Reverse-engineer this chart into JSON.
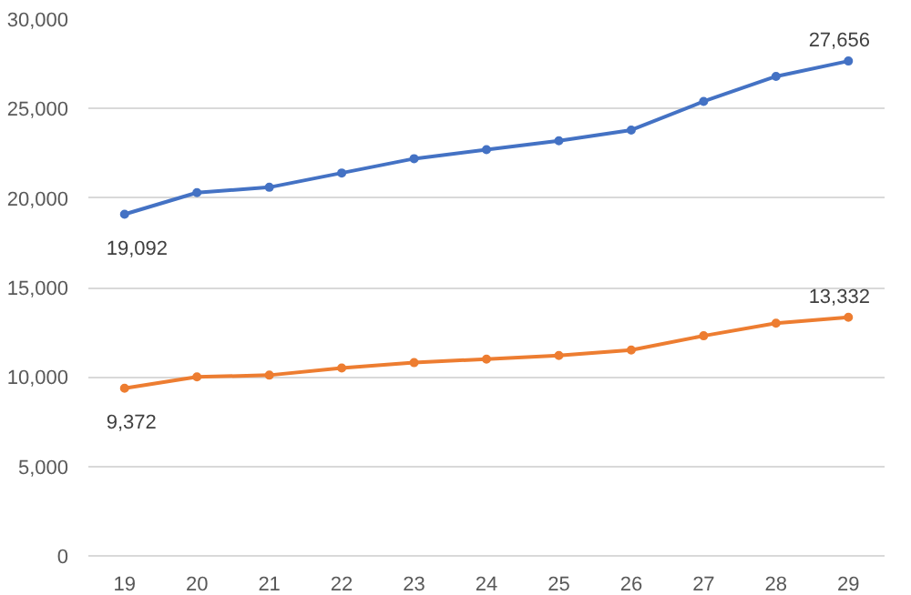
{
  "chart_data": {
    "type": "line",
    "categories": [
      "19",
      "20",
      "21",
      "22",
      "23",
      "24",
      "25",
      "26",
      "27",
      "28",
      "29"
    ],
    "series": [
      {
        "color": "#4472c4",
        "values": [
          19092,
          20300,
          20600,
          21400,
          22200,
          22700,
          23200,
          23800,
          25400,
          26800,
          27656
        ],
        "value_labels": [
          "19,092",
          null,
          null,
          null,
          null,
          null,
          null,
          null,
          null,
          null,
          "27,656"
        ]
      },
      {
        "color": "#ed7d31",
        "values": [
          9372,
          10000,
          10100,
          10500,
          10800,
          11000,
          11200,
          11500,
          12300,
          13000,
          13332
        ],
        "value_labels": [
          "9,372",
          null,
          null,
          null,
          null,
          null,
          null,
          null,
          null,
          null,
          "13,332"
        ]
      }
    ],
    "ylim": [
      0,
      30000
    ],
    "yticks": [
      {
        "value": 0,
        "label": "0"
      },
      {
        "value": 5000,
        "label": "5,000"
      },
      {
        "value": 10000,
        "label": "10,000"
      },
      {
        "value": 15000,
        "label": "15,000"
      },
      {
        "value": 20000,
        "label": "20,000"
      },
      {
        "value": 25000,
        "label": "25,000"
      },
      {
        "value": 30000,
        "label": "30,000"
      }
    ],
    "grid": "y",
    "marker": "circle",
    "line_style": "solid"
  }
}
